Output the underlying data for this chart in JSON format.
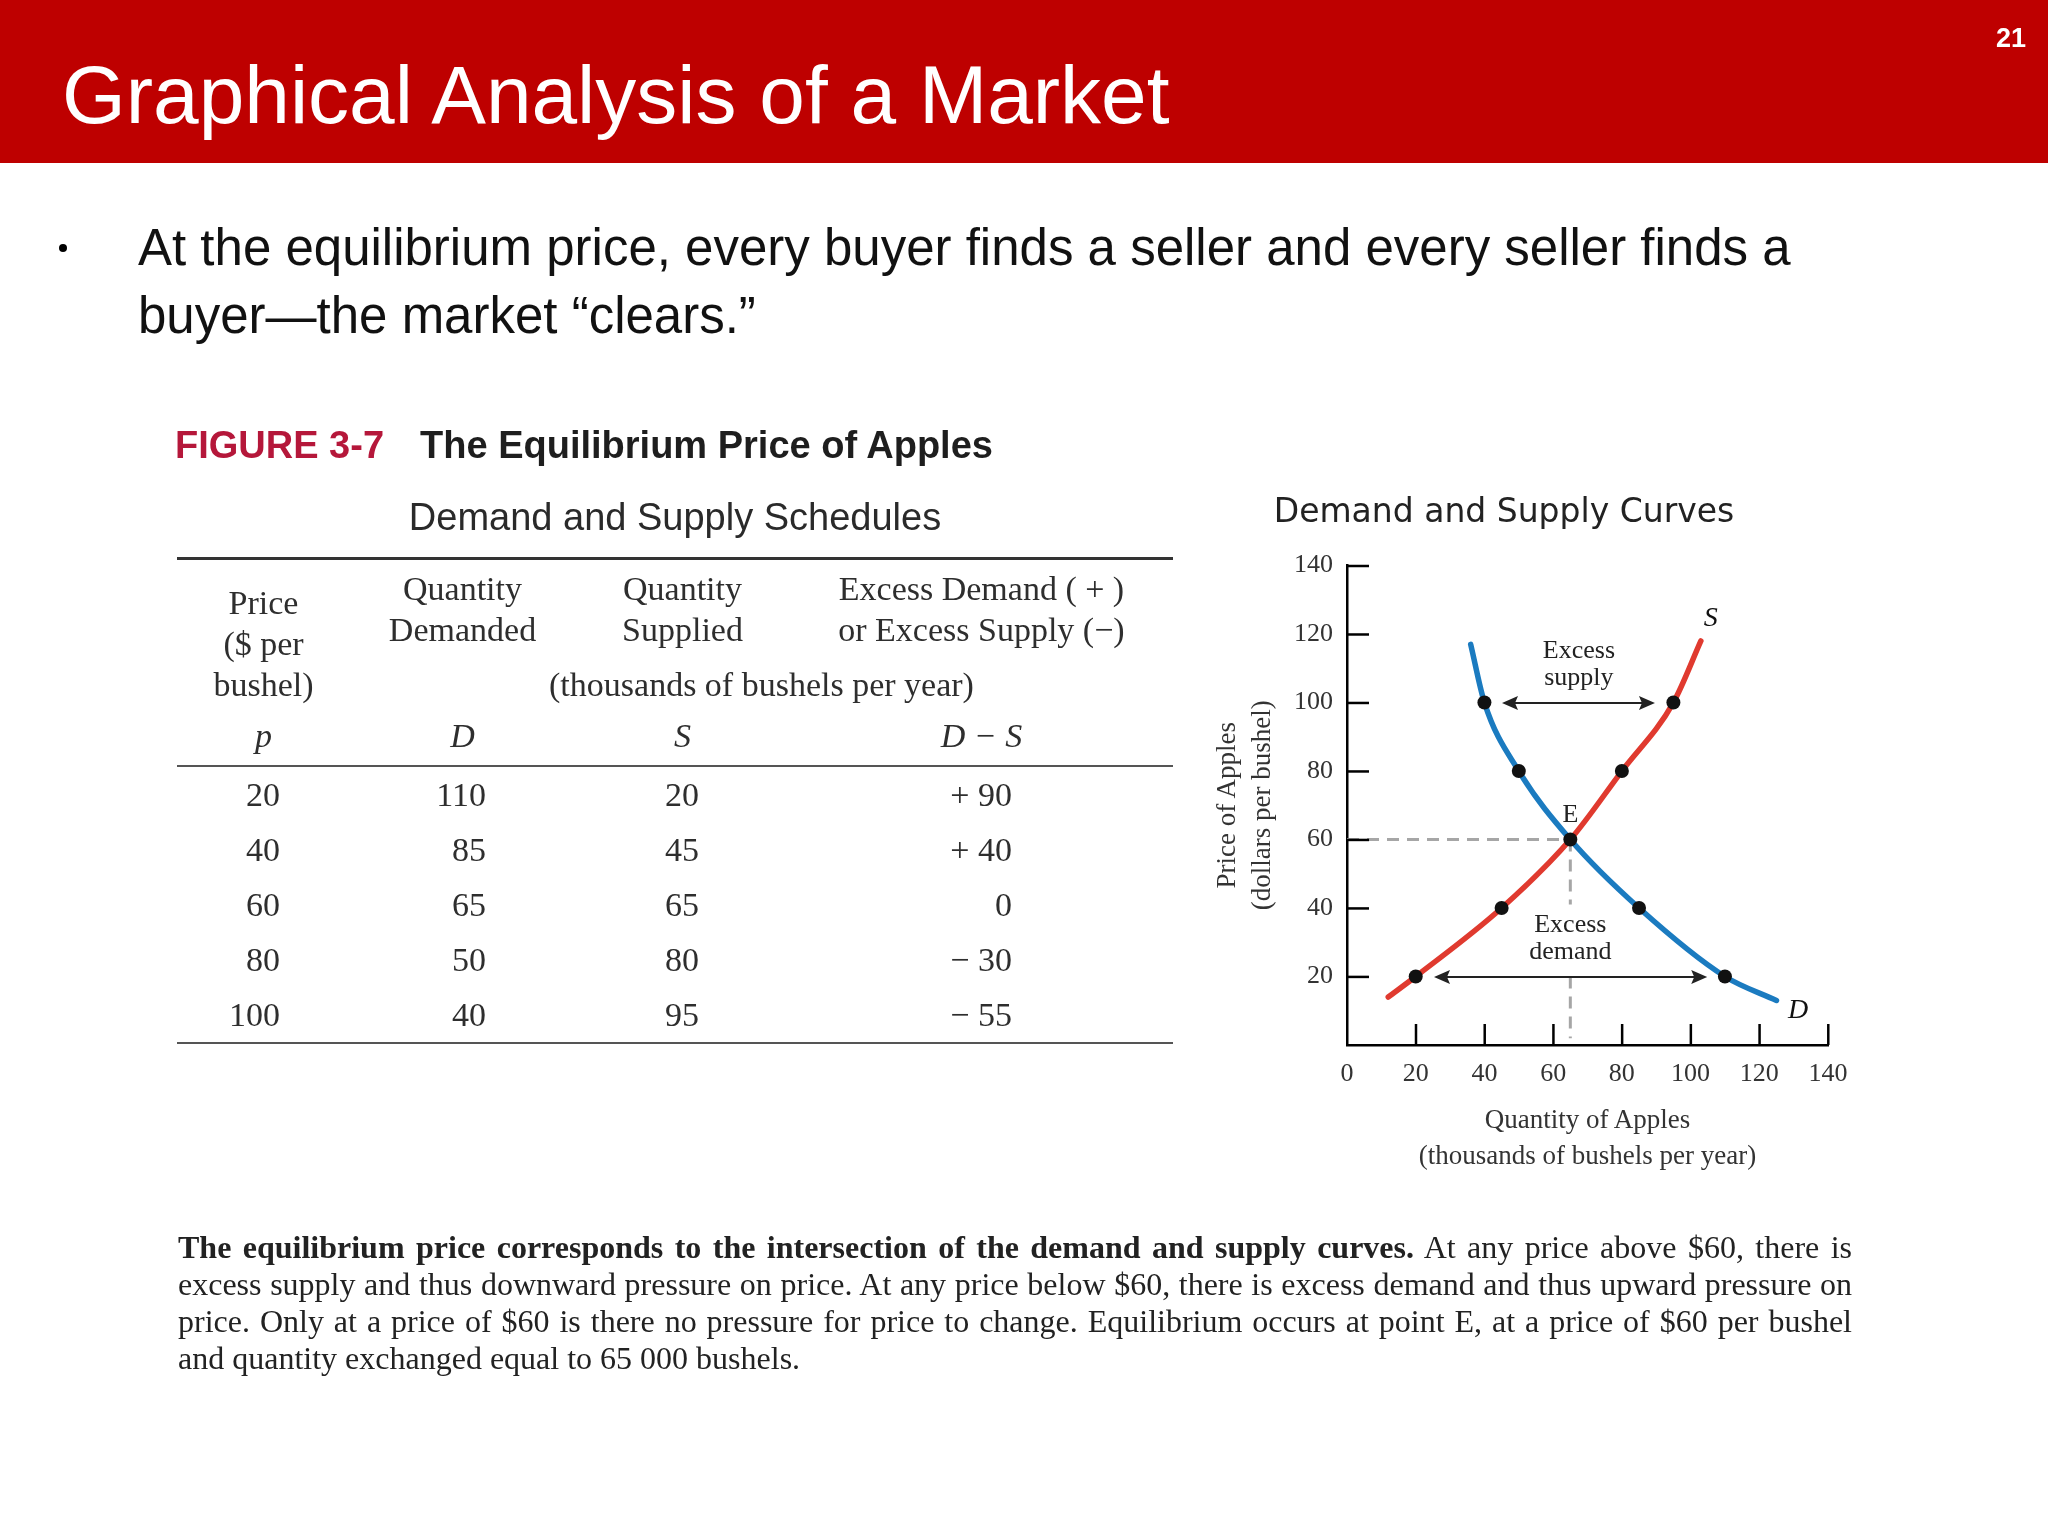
{
  "chart_data": [
    {
      "type": "other",
      "title": "Demand and Supply Schedules",
      "ylabel": "(thousands of bushels per year)",
      "categories": [
        "Price ($ per bushel)",
        "Quantity Demanded",
        "Quantity Supplied",
        "Excess Demand ( + ) or Excess Supply (−)"
      ],
      "series": [
        {
          "values": [
            20,
            110,
            20,
            90
          ],
          "value_labels": [
            "20",
            "110",
            "20",
            "+ 90"
          ]
        },
        {
          "values": [
            40,
            85,
            45,
            40
          ],
          "value_labels": [
            "40",
            "85",
            "45",
            "+ 40"
          ]
        },
        {
          "values": [
            60,
            65,
            65,
            0
          ],
          "value_labels": [
            "60",
            "65",
            "65",
            "0"
          ]
        },
        {
          "values": [
            80,
            50,
            80,
            -30
          ],
          "value_labels": [
            "80",
            "50",
            "80",
            "− 30"
          ]
        },
        {
          "values": [
            100,
            40,
            95,
            -55
          ],
          "value_labels": [
            "100",
            "40",
            "95",
            "− 55"
          ]
        }
      ],
      "annotations": [
        "p",
        "D",
        "S",
        "D − S",
        "21",
        "Graphical Analysis of a Market",
        "At the equilibrium price, every buyer finds a seller and every seller finds a buyer—the market “clears.”",
        "FIGURE 3-7",
        "The Equilibrium Price of Apples",
        "The equilibrium price corresponds to the intersection of the demand and supply curves.",
        "At any price above $60, there is excess supply and thus downward pressure on price. At any price below $60, there is excess demand and thus upward pressure on price. Only at a price of $60 is there no pressure for price to change. Equilibrium occurs at point E, at a price of $60 per bushel and quantity exchanged equal to 65 000 bushels."
      ]
    },
    {
      "type": "line",
      "title": "Demand and Supply Curves",
      "xlabel": "Quantity of Apples (thousands of bushels per year)",
      "ylabel": "Price of Apples (dollars per bushel)",
      "xlim": [
        0,
        140
      ],
      "xticks": [
        0,
        20,
        40,
        60,
        80,
        100,
        120,
        140
      ],
      "ylim": [
        0,
        140
      ],
      "yticks": [
        20,
        40,
        60,
        80,
        100,
        120,
        140
      ],
      "grid": false,
      "legend": false,
      "marker": "none",
      "line_style": "solid",
      "series": [
        {
          "name": "D",
          "color": "#1b7bc0",
          "x": [
            36,
            40,
            50,
            65,
            85,
            110,
            125
          ],
          "values": [
            117,
            100,
            80,
            60,
            40,
            20,
            13
          ]
        },
        {
          "name": "S",
          "color": "#e03a2f",
          "x": [
            12,
            20,
            45,
            65,
            80,
            95,
            103
          ],
          "values": [
            14,
            20,
            40,
            60,
            80,
            100,
            118
          ]
        },
        {
          "type": "scatter",
          "marker": "circle",
          "color": "#111111",
          "x": [
            40,
            50,
            65,
            85,
            110,
            20,
            45,
            80,
            95
          ],
          "values": [
            100,
            80,
            60,
            40,
            20,
            20,
            40,
            80,
            100
          ]
        },
        {
          "color": "#a6a6a6",
          "line_style": "dashed",
          "x": [
            0,
            65
          ],
          "values": [
            60,
            60
          ]
        },
        {
          "color": "#a6a6a6",
          "line_style": "dashed",
          "x": [
            65,
            65
          ],
          "values": [
            60,
            41
          ]
        },
        {
          "color": "#a6a6a6",
          "line_style": "dashed",
          "x": [
            65,
            65
          ],
          "values": [
            20,
            2
          ]
        }
      ],
      "annotations": [
        "E",
        "Excess supply",
        "Excess demand"
      ]
    }
  ]
}
